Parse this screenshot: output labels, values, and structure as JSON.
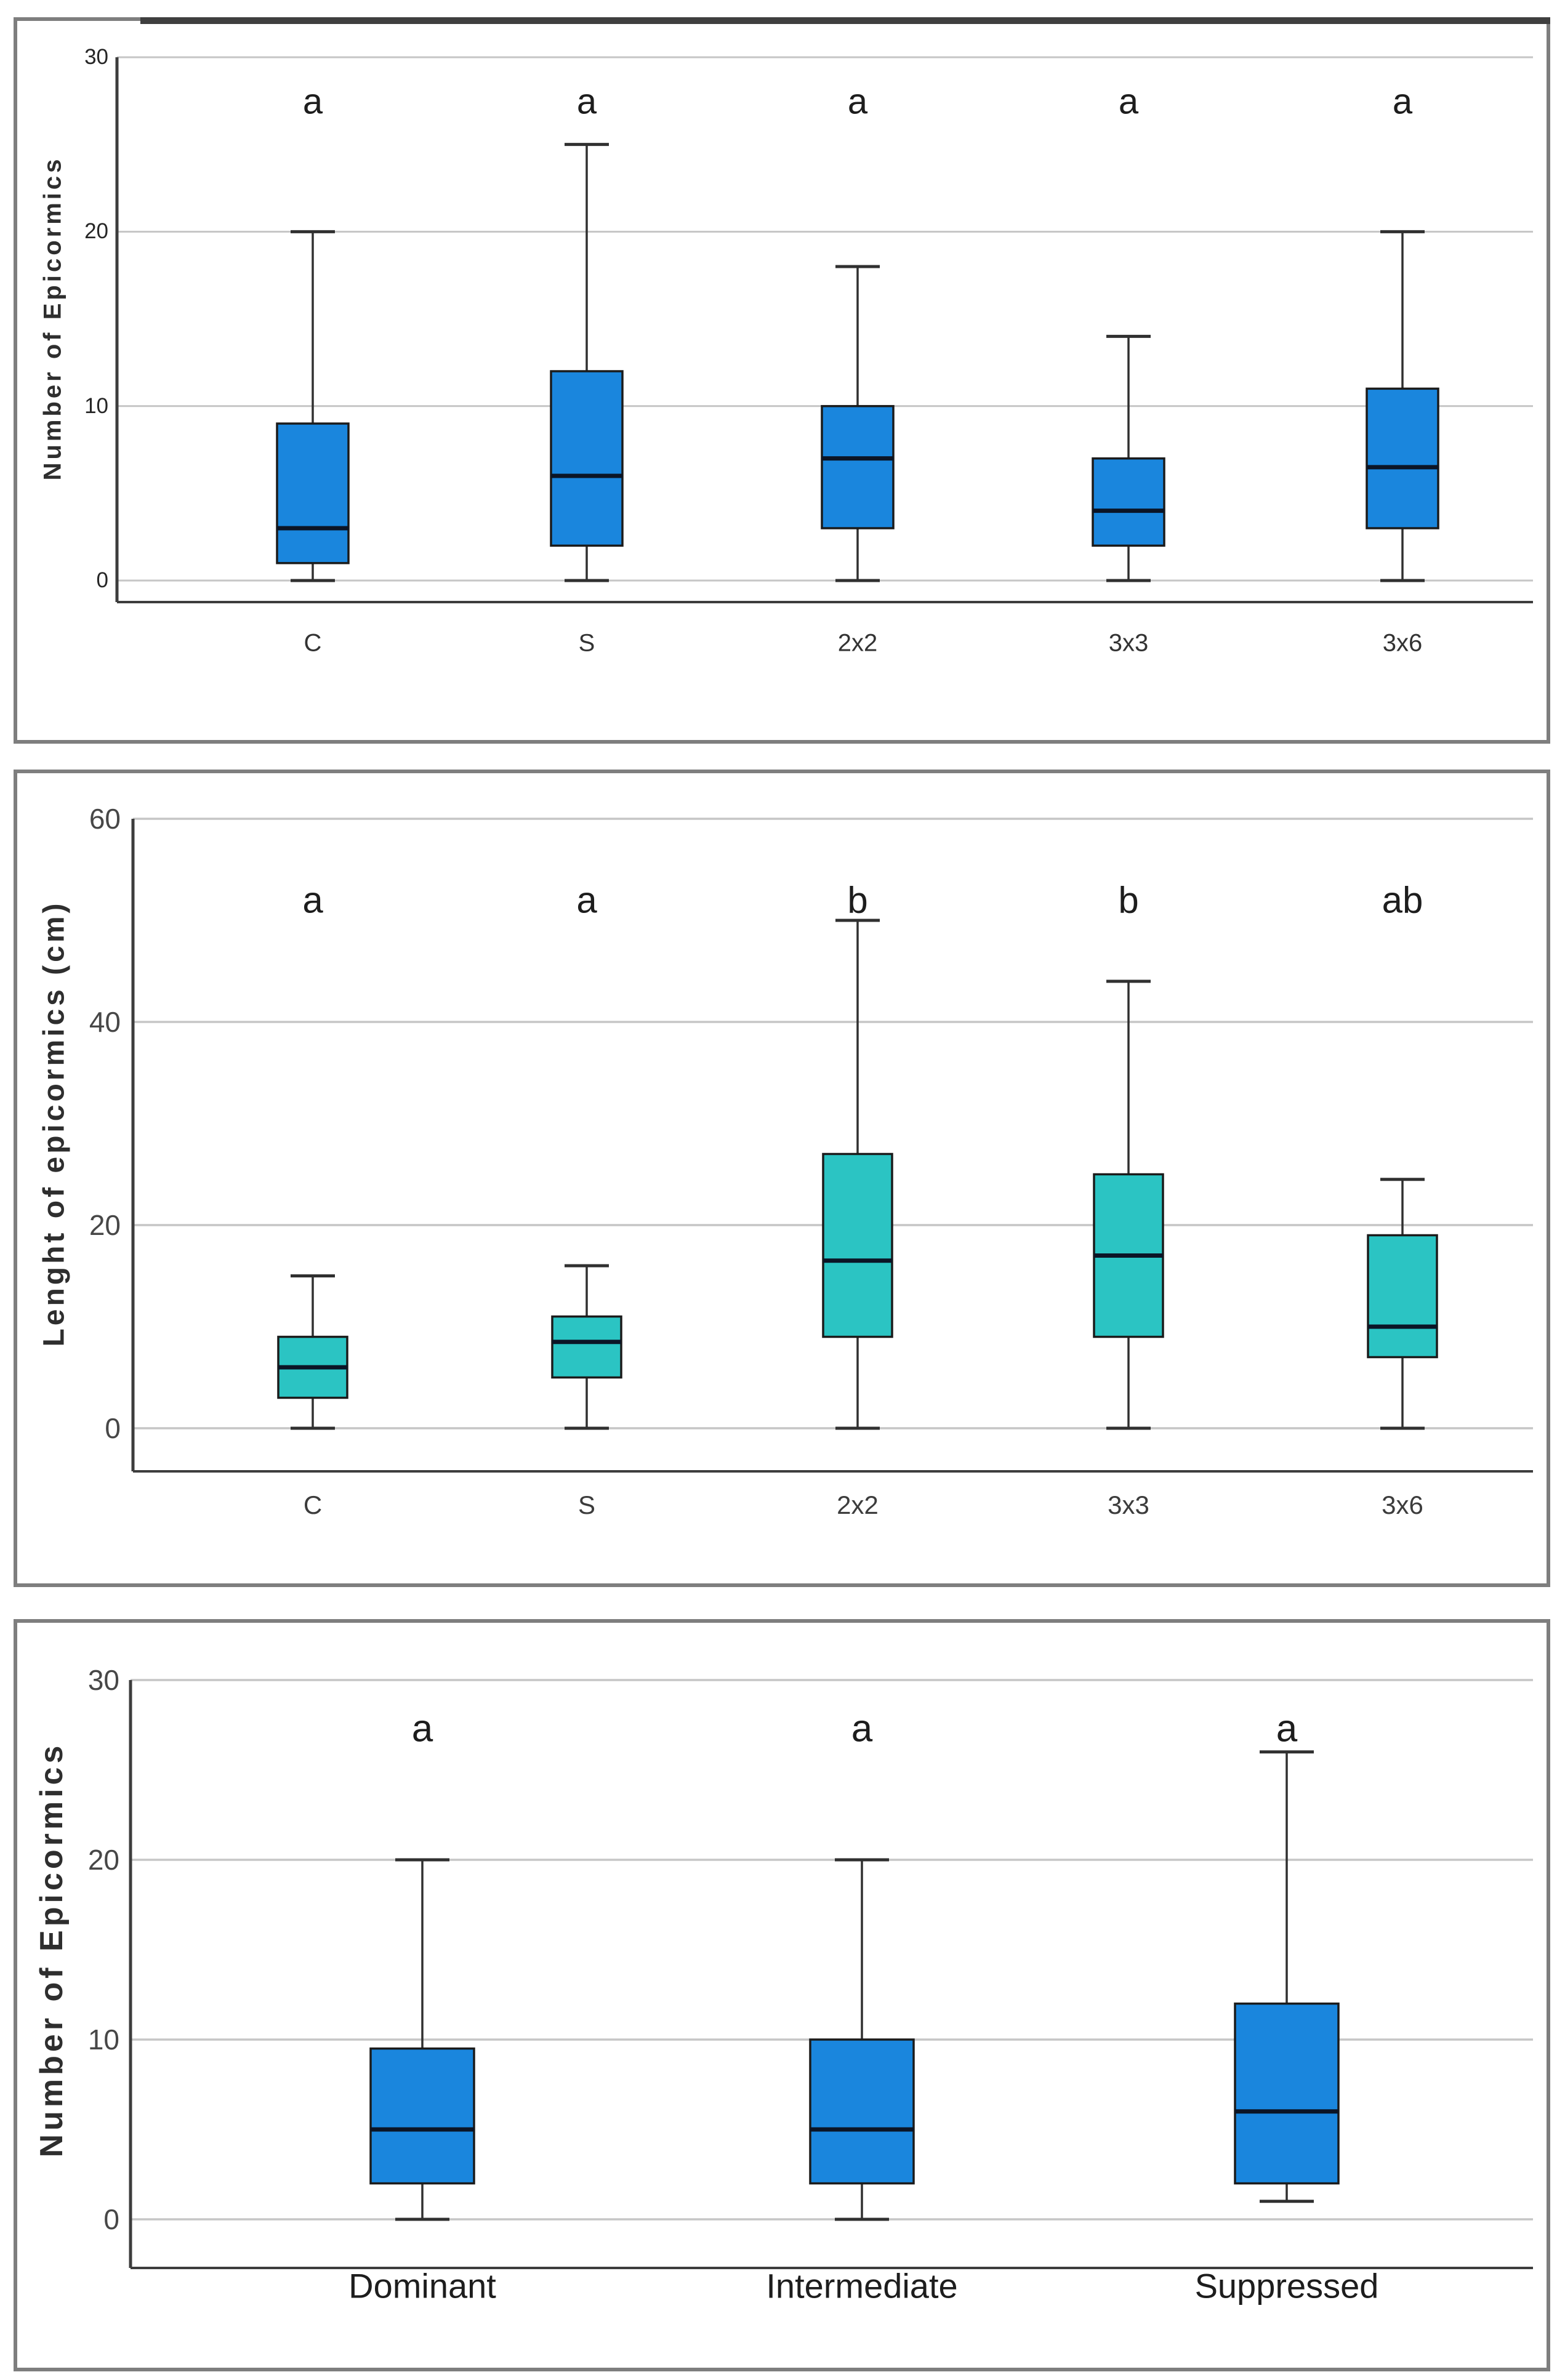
{
  "figure": {
    "background": "#ffffff",
    "panel_border_color": "#7e7e7e",
    "grid_color": "#c6c6c6",
    "axis_spine_color": "#3d3d3d",
    "box_edge_color": "#1b1b1b",
    "median_color": "#0b1526",
    "whisker_color": "#303030",
    "blue_box_color": "#1a86dd",
    "teal_box_color": "#2bc4c3"
  },
  "chart_data": [
    {
      "type": "box",
      "title": "",
      "xlabel": "",
      "ylabel": "Number of Epicormics",
      "ylim": [
        0,
        30
      ],
      "yticks": [
        0,
        10,
        20,
        30
      ],
      "grid": "horizontal",
      "legend": "none",
      "box_color": "#1a86dd",
      "categories": [
        "C",
        "S",
        "2x2",
        "3x3",
        "3x6"
      ],
      "significance_letters": [
        "a",
        "a",
        "a",
        "a",
        "a"
      ],
      "boxes": [
        {
          "category": "C",
          "min": 0,
          "q1": 1,
          "median": 3,
          "q3": 9,
          "max": 20
        },
        {
          "category": "S",
          "min": 0,
          "q1": 2,
          "median": 6,
          "q3": 12,
          "max": 25
        },
        {
          "category": "2x2",
          "min": 0,
          "q1": 3,
          "median": 7,
          "q3": 10,
          "max": 18
        },
        {
          "category": "3x3",
          "min": 0,
          "q1": 2,
          "median": 4,
          "q3": 7,
          "max": 14
        },
        {
          "category": "3x6",
          "min": 0,
          "q1": 3,
          "median": 6.5,
          "q3": 11,
          "max": 20
        }
      ]
    },
    {
      "type": "box",
      "title": "",
      "xlabel": "",
      "ylabel": "Lenght of epicormics (cm)",
      "ylim": [
        0,
        60
      ],
      "yticks": [
        0,
        20,
        40,
        60
      ],
      "grid": "horizontal",
      "legend": "none",
      "box_color": "#2bc4c3",
      "categories": [
        "C",
        "S",
        "2x2",
        "3x3",
        "3x6"
      ],
      "significance_letters": [
        "a",
        "a",
        "b",
        "b",
        "ab"
      ],
      "boxes": [
        {
          "category": "C",
          "min": 0,
          "q1": 3,
          "median": 6,
          "q3": 9,
          "max": 15
        },
        {
          "category": "S",
          "min": 0,
          "q1": 5,
          "median": 8.5,
          "q3": 11,
          "max": 16
        },
        {
          "category": "2x2",
          "min": 0,
          "q1": 9,
          "median": 16.5,
          "q3": 27,
          "max": 50
        },
        {
          "category": "3x3",
          "min": 0,
          "q1": 9,
          "median": 17,
          "q3": 25,
          "max": 44
        },
        {
          "category": "3x6",
          "min": 0,
          "q1": 7,
          "median": 10,
          "q3": 19,
          "max": 24.5
        }
      ]
    },
    {
      "type": "box",
      "title": "",
      "xlabel": "",
      "ylabel": "Number of Epicormics",
      "ylim": [
        0,
        30
      ],
      "yticks": [
        0,
        10,
        20,
        30
      ],
      "grid": "horizontal",
      "legend": "none",
      "box_color": "#1a86dd",
      "categories": [
        "Dominant",
        "Intermediate",
        "Suppressed"
      ],
      "significance_letters": [
        "a",
        "a",
        "a"
      ],
      "boxes": [
        {
          "category": "Dominant",
          "min": 0,
          "q1": 2,
          "median": 5,
          "q3": 9.5,
          "max": 20
        },
        {
          "category": "Intermediate",
          "min": 0,
          "q1": 2,
          "median": 5,
          "q3": 10,
          "max": 20
        },
        {
          "category": "Suppressed",
          "min": 1,
          "q1": 2,
          "median": 6,
          "q3": 12,
          "max": 26
        }
      ]
    }
  ]
}
